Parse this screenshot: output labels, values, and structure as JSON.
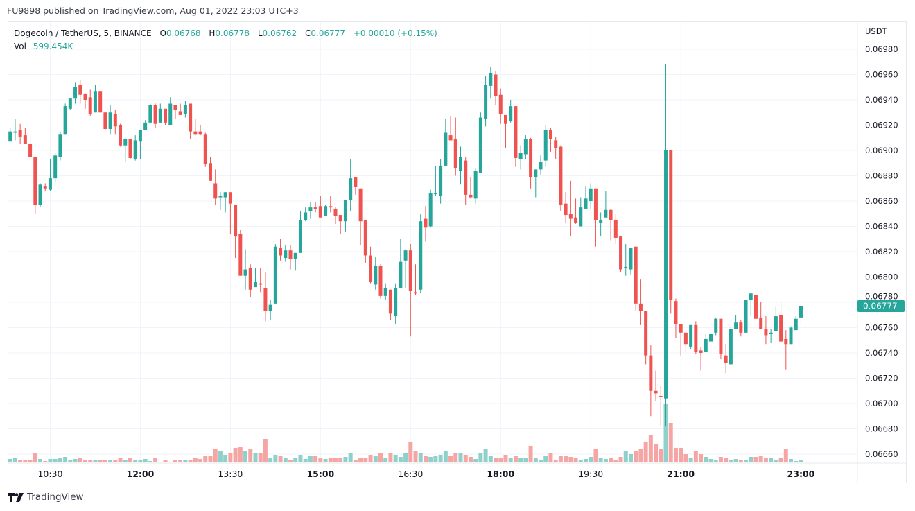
{
  "header": {
    "published": "FU9898 published on TradingView.com, Aug 01, 2022 23:03 UTC+3"
  },
  "legend": {
    "symbol": "Dogecoin / TetherUS, 5, BINANCE",
    "o_label": "O",
    "open": "0.06768",
    "h_label": "H",
    "high": "0.06778",
    "l_label": "L",
    "low": "0.06762",
    "c_label": "C",
    "close": "0.06777",
    "change": "+0.00010 (+0.15%)",
    "vol_label": "Vol",
    "vol_value": "599.454K"
  },
  "price_axis": {
    "unit": "USDT",
    "ticks": [
      "0.06980",
      "0.06960",
      "0.06940",
      "0.06920",
      "0.06900",
      "0.06880",
      "0.06860",
      "0.06840",
      "0.06820",
      "0.06800",
      "0.06780",
      "0.06760",
      "0.06740",
      "0.06720",
      "0.06700",
      "0.06680",
      "0.06660"
    ],
    "last_price": "0.06777"
  },
  "time_axis": {
    "labels": [
      {
        "text": "10:30",
        "bold": false
      },
      {
        "text": "12:00",
        "bold": true
      },
      {
        "text": "13:30",
        "bold": false
      },
      {
        "text": "15:00",
        "bold": true
      },
      {
        "text": "16:30",
        "bold": false
      },
      {
        "text": "18:00",
        "bold": true
      },
      {
        "text": "19:30",
        "bold": false
      },
      {
        "text": "21:00",
        "bold": true
      },
      {
        "text": "23:00",
        "bold": true
      }
    ]
  },
  "footer": {
    "brand": "TradingView"
  },
  "chart_data": {
    "type": "candlestick",
    "title": "Dogecoin / TetherUS, 5, BINANCE",
    "xlabel": "",
    "ylabel": "USDT",
    "start_time": "09:50",
    "interval_minutes": 5,
    "ylim": [
      0.0665,
      0.0699
    ],
    "grid": true,
    "colors": {
      "up": "#26a69a",
      "down": "#ef5350",
      "up_volume": "#8fd1ca",
      "down_volume": "#f5a6a4"
    },
    "ohlc_fields": [
      "open",
      "high",
      "low",
      "close"
    ],
    "ohlc": [
      [
        0.06907,
        0.06918,
        0.06907,
        0.06915
      ],
      [
        0.06914,
        0.06925,
        0.06908,
        0.06915
      ],
      [
        0.06916,
        0.06921,
        0.06905,
        0.06911
      ],
      [
        0.06912,
        0.06918,
        0.06905,
        0.06905
      ],
      [
        0.06905,
        0.06912,
        0.06895,
        0.06895
      ],
      [
        0.06895,
        0.06895,
        0.0685,
        0.06857
      ],
      [
        0.06857,
        0.06874,
        0.06855,
        0.06873
      ],
      [
        0.06872,
        0.06874,
        0.06868,
        0.0687
      ],
      [
        0.06869,
        0.06893,
        0.06868,
        0.06878
      ],
      [
        0.06878,
        0.06898,
        0.06875,
        0.06896
      ],
      [
        0.06895,
        0.06915,
        0.06892,
        0.06913
      ],
      [
        0.06913,
        0.06937,
        0.06913,
        0.06935
      ],
      [
        0.06933,
        0.06941,
        0.06932,
        0.06941
      ],
      [
        0.06941,
        0.06954,
        0.06937,
        0.0695
      ],
      [
        0.06952,
        0.06956,
        0.06937,
        0.06944
      ],
      [
        0.06945,
        0.06945,
        0.06933,
        0.0694
      ],
      [
        0.06942,
        0.06948,
        0.06927,
        0.06929
      ],
      [
        0.0693,
        0.06952,
        0.0693,
        0.06947
      ],
      [
        0.06947,
        0.06947,
        0.0693,
        0.0693
      ],
      [
        0.0693,
        0.0693,
        0.06916,
        0.06917
      ],
      [
        0.06917,
        0.06936,
        0.06913,
        0.0693
      ],
      [
        0.06929,
        0.06932,
        0.06913,
        0.06919
      ],
      [
        0.0692,
        0.06921,
        0.06903,
        0.06904
      ],
      [
        0.06904,
        0.0691,
        0.06891,
        0.06909
      ],
      [
        0.06909,
        0.06909,
        0.06893,
        0.06894
      ],
      [
        0.06893,
        0.06912,
        0.06892,
        0.06908
      ],
      [
        0.06907,
        0.06916,
        0.06893,
        0.06916
      ],
      [
        0.06916,
        0.06924,
        0.06916,
        0.06922
      ],
      [
        0.06922,
        0.06937,
        0.06922,
        0.06936
      ],
      [
        0.06936,
        0.06937,
        0.06918,
        0.06921
      ],
      [
        0.06922,
        0.06937,
        0.06922,
        0.06933
      ],
      [
        0.06933,
        0.06933,
        0.0692,
        0.06922
      ],
      [
        0.0692,
        0.06942,
        0.0692,
        0.06937
      ],
      [
        0.06936,
        0.06936,
        0.06925,
        0.06932
      ],
      [
        0.06931,
        0.06937,
        0.06928,
        0.06928
      ],
      [
        0.06929,
        0.06939,
        0.06926,
        0.06936
      ],
      [
        0.06937,
        0.06937,
        0.06909,
        0.06915
      ],
      [
        0.06915,
        0.06925,
        0.06912,
        0.06913
      ],
      [
        0.06915,
        0.0692,
        0.06912,
        0.06913
      ],
      [
        0.06913,
        0.06914,
        0.06887,
        0.06889
      ],
      [
        0.0689,
        0.06895,
        0.06876,
        0.06876
      ],
      [
        0.06874,
        0.06885,
        0.06857,
        0.06862
      ],
      [
        0.06863,
        0.06867,
        0.06853,
        0.06864
      ],
      [
        0.06863,
        0.06867,
        0.06851,
        0.06867
      ],
      [
        0.06867,
        0.06867,
        0.06834,
        0.06858
      ],
      [
        0.06857,
        0.06857,
        0.06815,
        0.06832
      ],
      [
        0.06834,
        0.06837,
        0.06801,
        0.06801
      ],
      [
        0.06801,
        0.06822,
        0.0679,
        0.06806
      ],
      [
        0.06807,
        0.0681,
        0.06784,
        0.0679
      ],
      [
        0.06792,
        0.06807,
        0.06792,
        0.06796
      ],
      [
        0.06795,
        0.06807,
        0.06788,
        0.06794
      ],
      [
        0.06791,
        0.06804,
        0.06765,
        0.06773
      ],
      [
        0.06773,
        0.06782,
        0.06766,
        0.06778
      ],
      [
        0.06779,
        0.06826,
        0.06779,
        0.06824
      ],
      [
        0.06823,
        0.0683,
        0.06813,
        0.06817
      ],
      [
        0.06815,
        0.06825,
        0.06812,
        0.06821
      ],
      [
        0.06821,
        0.06825,
        0.06806,
        0.06814
      ],
      [
        0.06814,
        0.06819,
        0.06805,
        0.06819
      ],
      [
        0.06819,
        0.06852,
        0.06819,
        0.06845
      ],
      [
        0.06845,
        0.06855,
        0.06844,
        0.06851
      ],
      [
        0.06852,
        0.06859,
        0.06846,
        0.06855
      ],
      [
        0.06855,
        0.06859,
        0.06851,
        0.06854
      ],
      [
        0.06856,
        0.06864,
        0.06847,
        0.06847
      ],
      [
        0.06848,
        0.06857,
        0.06848,
        0.06856
      ],
      [
        0.06856,
        0.06864,
        0.06851,
        0.06855
      ],
      [
        0.06854,
        0.06855,
        0.06842,
        0.06848
      ],
      [
        0.06849,
        0.06849,
        0.06834,
        0.06844
      ],
      [
        0.06844,
        0.06861,
        0.06836,
        0.06861
      ],
      [
        0.06861,
        0.06893,
        0.06852,
        0.06878
      ],
      [
        0.06879,
        0.06879,
        0.06865,
        0.06871
      ],
      [
        0.0687,
        0.0687,
        0.06825,
        0.06844
      ],
      [
        0.06845,
        0.06845,
        0.06811,
        0.06817
      ],
      [
        0.06817,
        0.06824,
        0.06795,
        0.06796
      ],
      [
        0.06794,
        0.06816,
        0.0679,
        0.06809
      ],
      [
        0.06809,
        0.0681,
        0.06783,
        0.06785
      ],
      [
        0.06785,
        0.06795,
        0.06782,
        0.06791
      ],
      [
        0.0679,
        0.0679,
        0.06766,
        0.06771
      ],
      [
        0.06769,
        0.06795,
        0.06763,
        0.06791
      ],
      [
        0.06791,
        0.0683,
        0.06791,
        0.06812
      ],
      [
        0.06813,
        0.06822,
        0.06791,
        0.06821
      ],
      [
        0.06821,
        0.06826,
        0.06753,
        0.06789
      ],
      [
        0.06788,
        0.0681,
        0.06786,
        0.06787
      ],
      [
        0.0679,
        0.0685,
        0.06787,
        0.06844
      ],
      [
        0.06846,
        0.06856,
        0.06828,
        0.06839
      ],
      [
        0.0684,
        0.06869,
        0.06839,
        0.06866
      ],
      [
        0.06866,
        0.06888,
        0.06864,
        0.06866
      ],
      [
        0.06864,
        0.06893,
        0.06858,
        0.06888
      ],
      [
        0.06888,
        0.06925,
        0.06888,
        0.06914
      ],
      [
        0.06912,
        0.06927,
        0.06908,
        0.06908
      ],
      [
        0.06909,
        0.06926,
        0.0688,
        0.06886
      ],
      [
        0.06884,
        0.06903,
        0.06873,
        0.06895
      ],
      [
        0.06892,
        0.06895,
        0.06857,
        0.06865
      ],
      [
        0.06865,
        0.06879,
        0.06862,
        0.06863
      ],
      [
        0.06862,
        0.06886,
        0.06858,
        0.06884
      ],
      [
        0.06882,
        0.0693,
        0.06882,
        0.06926
      ],
      [
        0.06925,
        0.06959,
        0.06919,
        0.06952
      ],
      [
        0.06951,
        0.06966,
        0.06941,
        0.06961
      ],
      [
        0.0696,
        0.06963,
        0.06936,
        0.06943
      ],
      [
        0.06944,
        0.06949,
        0.06921,
        0.06929
      ],
      [
        0.06928,
        0.06928,
        0.06902,
        0.06921
      ],
      [
        0.06923,
        0.0694,
        0.06922,
        0.06935
      ],
      [
        0.06935,
        0.06935,
        0.06887,
        0.06894
      ],
      [
        0.06893,
        0.06904,
        0.06885,
        0.06898
      ],
      [
        0.06897,
        0.06912,
        0.06893,
        0.06909
      ],
      [
        0.06909,
        0.0691,
        0.0687,
        0.06879
      ],
      [
        0.06879,
        0.06885,
        0.06863,
        0.06885
      ],
      [
        0.06885,
        0.06896,
        0.06881,
        0.06891
      ],
      [
        0.06892,
        0.0692,
        0.06887,
        0.06916
      ],
      [
        0.06916,
        0.06918,
        0.06899,
        0.06909
      ],
      [
        0.06908,
        0.06911,
        0.06893,
        0.06902
      ],
      [
        0.06903,
        0.06904,
        0.06852,
        0.06857
      ],
      [
        0.06858,
        0.06867,
        0.06843,
        0.06849
      ],
      [
        0.0685,
        0.06876,
        0.06832,
        0.06846
      ],
      [
        0.06847,
        0.06862,
        0.06842,
        0.06843
      ],
      [
        0.0684,
        0.06863,
        0.0684,
        0.06855
      ],
      [
        0.06854,
        0.06872,
        0.06854,
        0.06862
      ],
      [
        0.0686,
        0.06874,
        0.06854,
        0.0687
      ],
      [
        0.0687,
        0.0687,
        0.06824,
        0.06845
      ],
      [
        0.06843,
        0.06851,
        0.06832,
        0.06845
      ],
      [
        0.06847,
        0.06868,
        0.06847,
        0.06853
      ],
      [
        0.06853,
        0.06854,
        0.06829,
        0.06845
      ],
      [
        0.06845,
        0.0685,
        0.06826,
        0.06831
      ],
      [
        0.06832,
        0.06832,
        0.06804,
        0.06806
      ],
      [
        0.06807,
        0.06826,
        0.06801,
        0.06808
      ],
      [
        0.06806,
        0.06823,
        0.06802,
        0.06823
      ],
      [
        0.06824,
        0.06824,
        0.06773,
        0.06779
      ],
      [
        0.06779,
        0.06798,
        0.06762,
        0.06773
      ],
      [
        0.06773,
        0.06773,
        0.06731,
        0.06738
      ],
      [
        0.06738,
        0.06746,
        0.0669,
        0.0671
      ],
      [
        0.0671,
        0.06726,
        0.06702,
        0.06708
      ],
      [
        0.06706,
        0.06714,
        0.06682,
        0.06705
      ],
      [
        0.06704,
        0.06968,
        0.06682,
        0.069
      ],
      [
        0.069,
        0.069,
        0.06771,
        0.06782
      ],
      [
        0.06781,
        0.06783,
        0.06752,
        0.06763
      ],
      [
        0.06763,
        0.06763,
        0.06738,
        0.06756
      ],
      [
        0.06756,
        0.06756,
        0.06741,
        0.06747
      ],
      [
        0.06745,
        0.06762,
        0.06743,
        0.06762
      ],
      [
        0.06762,
        0.06765,
        0.06739,
        0.06741
      ],
      [
        0.06742,
        0.06745,
        0.06726,
        0.0674
      ],
      [
        0.06741,
        0.06755,
        0.06741,
        0.06751
      ],
      [
        0.06749,
        0.06758,
        0.06747,
        0.06755
      ],
      [
        0.06756,
        0.06768,
        0.06754,
        0.06767
      ],
      [
        0.06767,
        0.06767,
        0.06735,
        0.06739
      ],
      [
        0.06738,
        0.06747,
        0.06724,
        0.06732
      ],
      [
        0.06731,
        0.06761,
        0.06731,
        0.06759
      ],
      [
        0.06759,
        0.0677,
        0.06759,
        0.06764
      ],
      [
        0.06764,
        0.06766,
        0.06753,
        0.06756
      ],
      [
        0.06756,
        0.06782,
        0.06756,
        0.06782
      ],
      [
        0.06782,
        0.06787,
        0.06769,
        0.06787
      ],
      [
        0.06786,
        0.0679,
        0.06765,
        0.06767
      ],
      [
        0.06768,
        0.0678,
        0.06759,
        0.06759
      ],
      [
        0.06759,
        0.06769,
        0.06747,
        0.06754
      ],
      [
        0.06755,
        0.06759,
        0.06748,
        0.06756
      ],
      [
        0.06757,
        0.06777,
        0.06757,
        0.06769
      ],
      [
        0.0677,
        0.0678,
        0.06748,
        0.06749
      ],
      [
        0.06751,
        0.06758,
        0.06727,
        0.06747
      ],
      [
        0.06747,
        0.06761,
        0.06747,
        0.0676
      ],
      [
        0.06758,
        0.06769,
        0.06758,
        0.06767
      ],
      [
        0.06768,
        0.06778,
        0.06762,
        0.06777
      ]
    ],
    "volume_k": [
      1000,
      1400,
      800,
      800,
      600,
      2800,
      1000,
      400,
      1000,
      1000,
      1400,
      1600,
      800,
      1000,
      1400,
      800,
      600,
      800,
      600,
      600,
      600,
      600,
      1200,
      600,
      1200,
      800,
      800,
      1000,
      400,
      1400,
      200,
      600,
      200,
      800,
      600,
      600,
      600,
      1200,
      1000,
      1800,
      1800,
      3800,
      3400,
      2200,
      2800,
      4200,
      4600,
      3400,
      4000,
      2600,
      2800,
      6800,
      1200,
      2200,
      1800,
      1400,
      800,
      1200,
      2200,
      1000,
      1800,
      1800,
      1400,
      1000,
      1200,
      1200,
      1400,
      1600,
      2600,
      800,
      1400,
      1400,
      2200,
      2000,
      2800,
      1400,
      2800,
      2200,
      1600,
      2600,
      6000,
      3200,
      2600,
      1800,
      1600,
      2000,
      2200,
      3400,
      1800,
      2600,
      2800,
      2200,
      1600,
      1000,
      2600,
      3800,
      2000,
      1400,
      1200,
      2200,
      1400,
      2000,
      1400,
      1200,
      4800,
      1200,
      800,
      2000,
      2800,
      600,
      1800,
      1800,
      1600,
      1200,
      800,
      1000,
      1600,
      3800,
      1200,
      1000,
      1200,
      800,
      1600,
      3400,
      2400,
      3200,
      3800,
      6000,
      8000,
      5400,
      3800,
      16800,
      11400,
      4200,
      4200,
      2400,
      1400,
      3400,
      2400,
      1600,
      1000,
      800,
      1600,
      1200,
      800,
      1000,
      800,
      800,
      1600,
      1600,
      1800,
      1400,
      1200,
      800,
      1400,
      3800,
      1000,
      400,
      599.454
    ]
  }
}
